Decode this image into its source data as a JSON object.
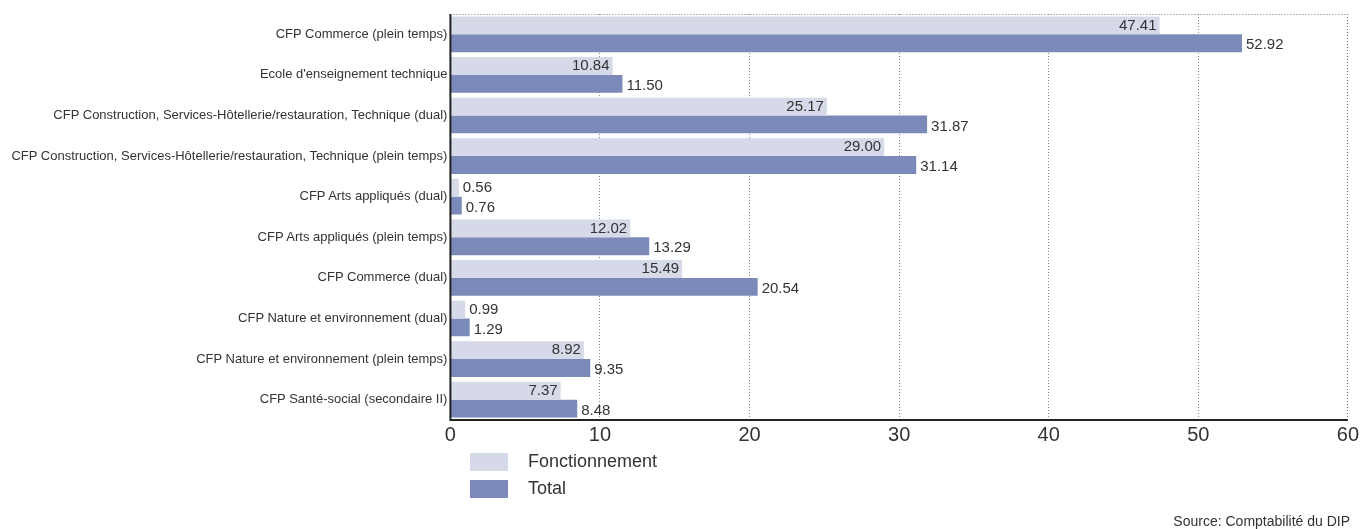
{
  "chart_data": {
    "type": "bar",
    "orientation": "horizontal",
    "categories": [
      "CFP Commerce (plein temps)",
      "Ecole d'enseignement technique",
      "CFP Construction, Services-Hôtellerie/restauration, Technique (dual)",
      "CFP Construction, Services-Hôtellerie/restauration, Technique (plein temps)",
      "CFP Arts appliqués (dual)",
      "CFP Arts appliqués (plein temps)",
      "CFP Commerce (dual)",
      "CFP Nature et environnement (dual)",
      "CFP Nature et environnement (plein temps)",
      "CFP Santé-social (secondaire II)"
    ],
    "series": [
      {
        "name": "Fonctionnement",
        "color": "#d5d9e8",
        "values": [
          47.41,
          10.84,
          25.17,
          29.0,
          0.56,
          12.02,
          15.49,
          0.99,
          8.92,
          7.37
        ],
        "value_labels": [
          "47.41",
          "10.84",
          "25.17",
          "29.00",
          "0.56",
          "12.02",
          "15.49",
          "0.99",
          "8.92",
          "7.37"
        ]
      },
      {
        "name": "Total",
        "color": "#7b8ab8",
        "values": [
          52.92,
          11.5,
          31.87,
          31.14,
          0.76,
          13.29,
          20.54,
          1.29,
          9.35,
          8.48
        ],
        "value_labels": [
          "52.92",
          "11.50",
          "31.87",
          "31.14",
          "0.76",
          "13.29",
          "20.54",
          "1.29",
          "9.35",
          "8.48"
        ]
      }
    ],
    "xlim": [
      0,
      60
    ],
    "xticks": [
      0,
      10,
      20,
      30,
      40,
      50,
      60
    ],
    "grid": "x",
    "legend": "bottom left",
    "annotations": [
      "Source: Comptabilité du DIP"
    ]
  }
}
